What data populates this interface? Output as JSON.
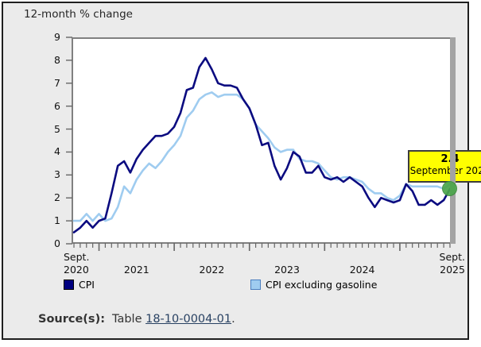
{
  "title": "12-month % change",
  "tooltip": {
    "value": "2.4",
    "label": "September 2025"
  },
  "legend": [
    {
      "label": "CPI",
      "color": "#000080",
      "border": "#000000"
    },
    {
      "label": "CPI excluding gasoline",
      "color": "#9fccf0",
      "border": "#4a7ebf"
    }
  ],
  "source": {
    "prefix": "Source(s):",
    "text": "Table",
    "link": "18-10-0004-01",
    "suffix": "."
  },
  "colors": {
    "widget_border": "#1f1f1f",
    "background": "#ebebeb",
    "plot_bg": "#ffffff",
    "frame": "#808080",
    "tick": "#666666",
    "cpi_line": "#0b0b80",
    "ex_gas_line": "#9fccf0",
    "tooltip_bg": "#ffff00",
    "tooltip_border": "#3c3c3c",
    "marker_green": "#4ca64c",
    "crosshair": "#a3a3a3",
    "link": "#284162"
  },
  "chart_data": {
    "type": "line",
    "title": "12-month % change",
    "x_range": {
      "start": "September 2020",
      "end": "September 2025",
      "interval": "monthly"
    },
    "ylim": [
      0,
      9
    ],
    "yticks": [
      0,
      1,
      2,
      3,
      4,
      5,
      6,
      7,
      8,
      9
    ],
    "grid": false,
    "legend_position": "bottom",
    "xticks": [
      {
        "lines": [
          "Sept.",
          "2020"
        ],
        "month": 0,
        "align": "left"
      },
      {
        "lines": [
          "2021"
        ],
        "month": 10,
        "align": "center"
      },
      {
        "lines": [
          "2022"
        ],
        "month": 22,
        "align": "center"
      },
      {
        "lines": [
          "2023"
        ],
        "month": 34,
        "align": "center"
      },
      {
        "lines": [
          "2024"
        ],
        "month": 46,
        "align": "center"
      },
      {
        "lines": [
          "Sept.",
          "2025"
        ],
        "month": 60,
        "align": "right"
      }
    ],
    "major_tick_months": [
      4,
      16,
      28,
      40,
      52
    ],
    "series": [
      {
        "name": "CPI excluding gasoline",
        "color": "#9fccf0",
        "values": [
          1.0,
          1.0,
          1.3,
          1.0,
          1.3,
          1.0,
          1.1,
          1.6,
          2.5,
          2.2,
          2.8,
          3.2,
          3.5,
          3.3,
          3.6,
          4.0,
          4.3,
          4.7,
          5.5,
          5.8,
          6.3,
          6.5,
          6.6,
          6.4,
          6.5,
          6.5,
          6.5,
          6.3,
          5.9,
          5.2,
          4.9,
          4.6,
          4.2,
          4.0,
          4.1,
          4.1,
          3.7,
          3.6,
          3.6,
          3.5,
          3.2,
          2.9,
          2.8,
          2.9,
          2.9,
          2.8,
          2.7,
          2.4,
          2.2,
          2.2,
          2.0,
          1.9,
          2.1,
          2.6,
          2.5,
          2.5,
          2.5,
          2.5,
          2.5,
          2.4,
          2.6
        ]
      },
      {
        "name": "CPI",
        "color": "#0b0b80",
        "values": [
          0.5,
          0.7,
          1.0,
          0.7,
          1.0,
          1.1,
          2.2,
          3.4,
          3.6,
          3.1,
          3.7,
          4.1,
          4.4,
          4.7,
          4.7,
          4.8,
          5.1,
          5.7,
          6.7,
          6.8,
          7.7,
          8.1,
          7.6,
          7.0,
          6.9,
          6.9,
          6.8,
          6.3,
          5.9,
          5.2,
          4.3,
          4.4,
          3.4,
          2.8,
          3.3,
          4.0,
          3.8,
          3.1,
          3.1,
          3.4,
          2.9,
          2.8,
          2.9,
          2.7,
          2.9,
          2.7,
          2.5,
          2.0,
          1.6,
          2.0,
          1.9,
          1.8,
          1.9,
          2.6,
          2.3,
          1.7,
          1.7,
          1.9,
          1.7,
          1.9,
          2.4
        ]
      }
    ],
    "highlight": {
      "series": "CPI",
      "month_index": 60,
      "label": "September 2025",
      "value": 2.4
    }
  }
}
